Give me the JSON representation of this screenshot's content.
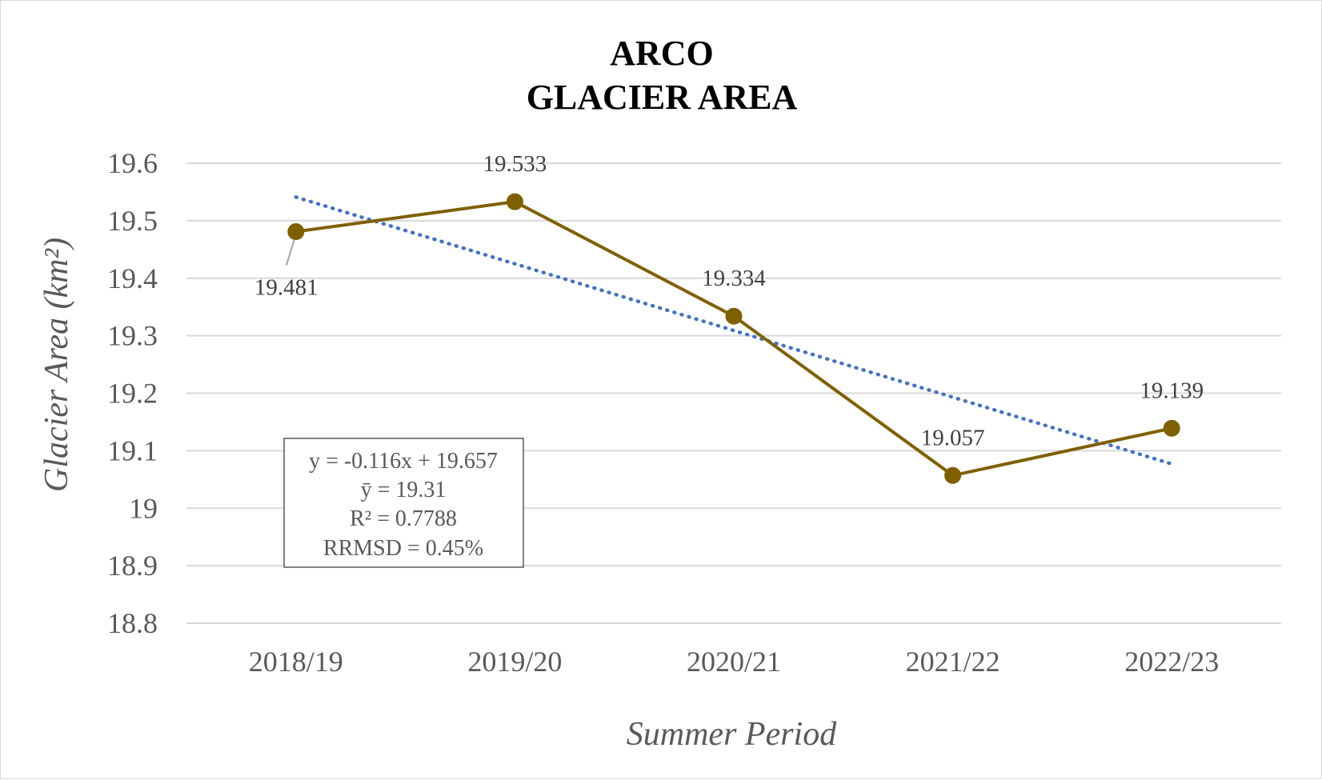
{
  "chart_data": {
    "type": "line",
    "title_line1": "ARCO",
    "title_line2": "GLACIER AREA",
    "xlabel": "Summer Period",
    "ylabel": "Glacier Area (km²)",
    "categories": [
      "2018/19",
      "2019/20",
      "2020/21",
      "2021/22",
      "2022/23"
    ],
    "series": [
      {
        "name": "Glacier Area",
        "values": [
          19.481,
          19.533,
          19.334,
          19.057,
          19.139
        ],
        "labels": [
          "19.481",
          "19.533",
          "19.334",
          "19.057",
          "19.139"
        ],
        "color": "#7f6000"
      }
    ],
    "trendline": {
      "type": "linear",
      "slope": -0.116,
      "intercept": 19.657,
      "color": "#4472c4",
      "style": "dotted"
    },
    "ylim": [
      18.8,
      19.6
    ],
    "yticks": [
      "19.6",
      "19.5",
      "19.4",
      "19.3",
      "19.2",
      "19.1",
      "19",
      "18.9",
      "18.8"
    ],
    "ytick_values": [
      19.6,
      19.5,
      19.4,
      19.3,
      19.2,
      19.1,
      19.0,
      18.9,
      18.8
    ],
    "grid": true,
    "stats": {
      "equation": "y = -0.116x + 19.657",
      "mean": "ȳ = 19.31",
      "r2": "R² = 0.7788",
      "rrmsd": "RRMSD = 0.45%"
    }
  }
}
